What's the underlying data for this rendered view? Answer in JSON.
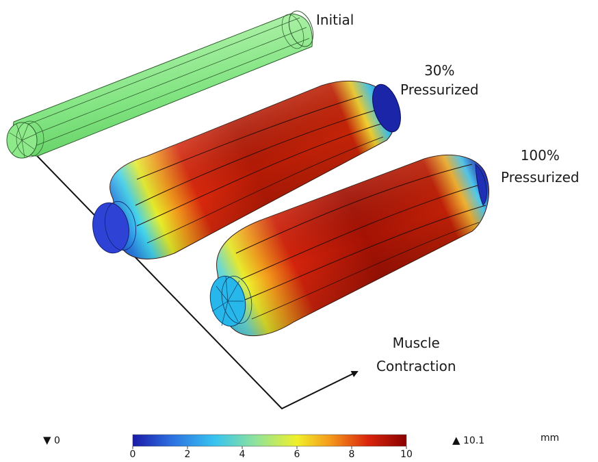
{
  "labels": {
    "initial": "Initial",
    "pressurized_30": [
      "30%",
      "Pressurized"
    ],
    "pressurized_100": [
      "100%",
      "Pressurized"
    ],
    "arrow": [
      "Muscle",
      "Contraction"
    ]
  },
  "legend": {
    "min_marker": "▼",
    "min_value": "0",
    "max_marker": "▲",
    "max_value": "10.1",
    "unit": "mm",
    "ticks": [
      "0",
      "2",
      "4",
      "6",
      "8",
      "10"
    ],
    "colormap": [
      "#1a1aa8",
      "#2c6fe0",
      "#38c4f0",
      "#8fe39a",
      "#f0f02a",
      "#f59a1c",
      "#d9250c",
      "#8a0000"
    ]
  },
  "colors": {
    "initial_body": "#7fe37f",
    "end_cap_blue": "#2a3fd0",
    "deformed_peak": "#a01000"
  }
}
